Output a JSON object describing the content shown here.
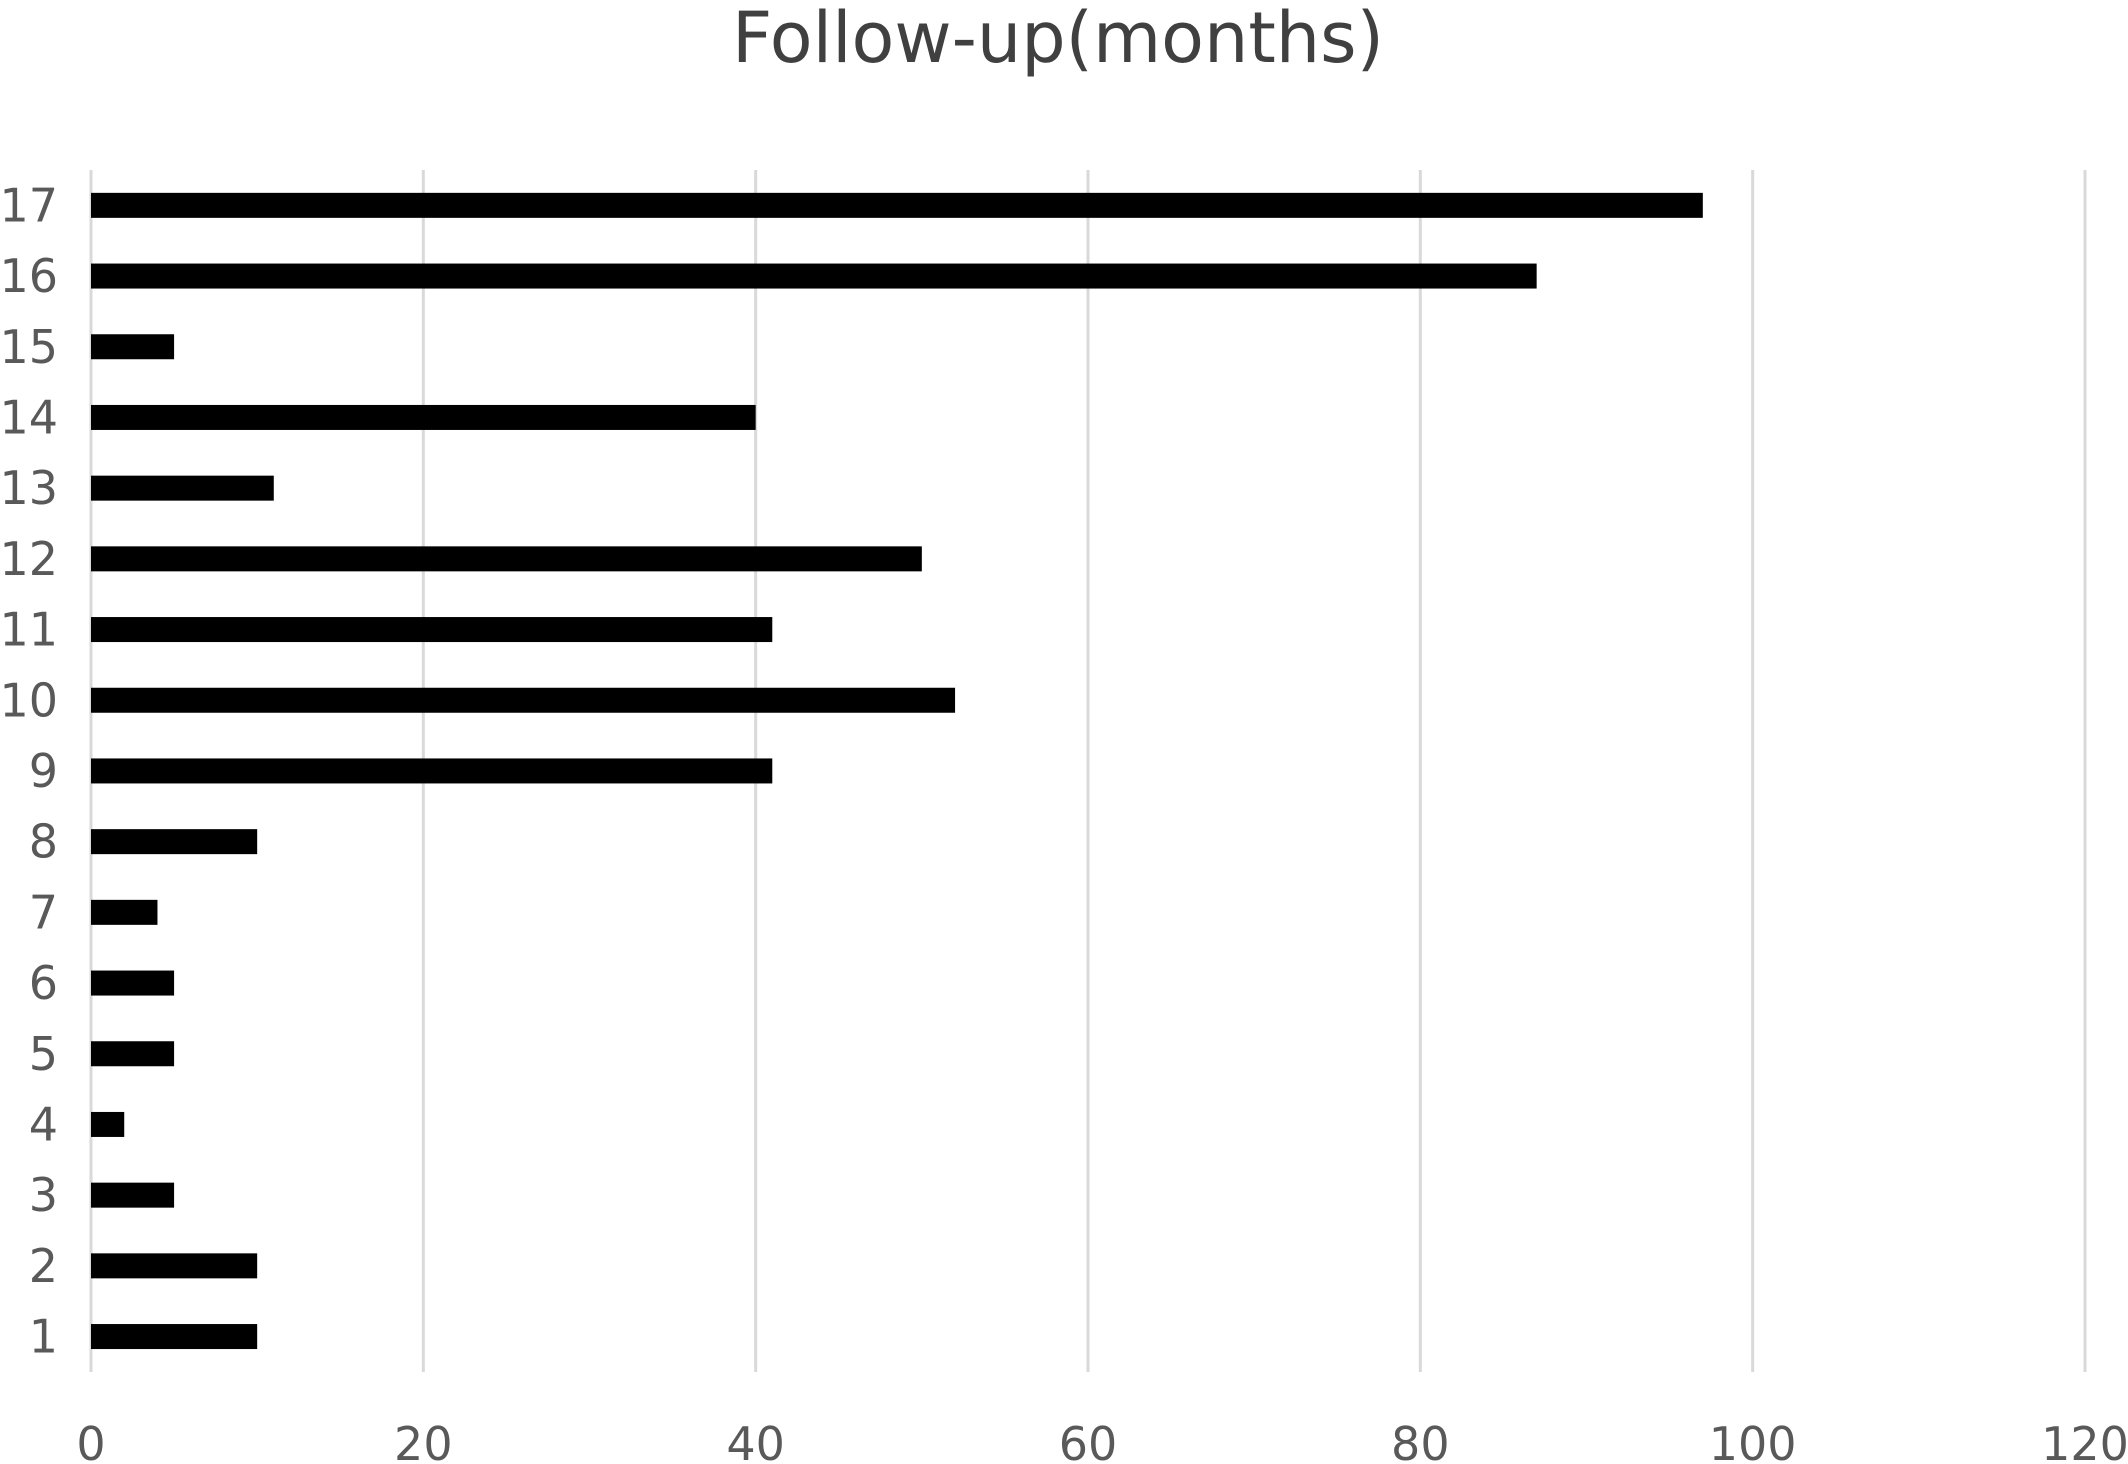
{
  "chart_data": {
    "type": "bar",
    "orientation": "horizontal",
    "title": "Follow-up(months)",
    "xlabel": "",
    "ylabel": "",
    "categories": [
      "1",
      "2",
      "3",
      "4",
      "5",
      "6",
      "7",
      "8",
      "9",
      "10",
      "11",
      "12",
      "13",
      "14",
      "15",
      "16",
      "17"
    ],
    "values": [
      10,
      10,
      5,
      2,
      5,
      5,
      4,
      10,
      41,
      52,
      41,
      50,
      11,
      40,
      5,
      87,
      97
    ],
    "xlim": [
      0,
      120
    ],
    "x_ticks": [
      "0",
      "20",
      "40",
      "60",
      "80",
      "100",
      "120"
    ],
    "grid": true,
    "legend": "none",
    "bar_color": "#000000",
    "grid_color": "#d9d9d9",
    "text_color": "#595959",
    "title_color": "#404040"
  }
}
